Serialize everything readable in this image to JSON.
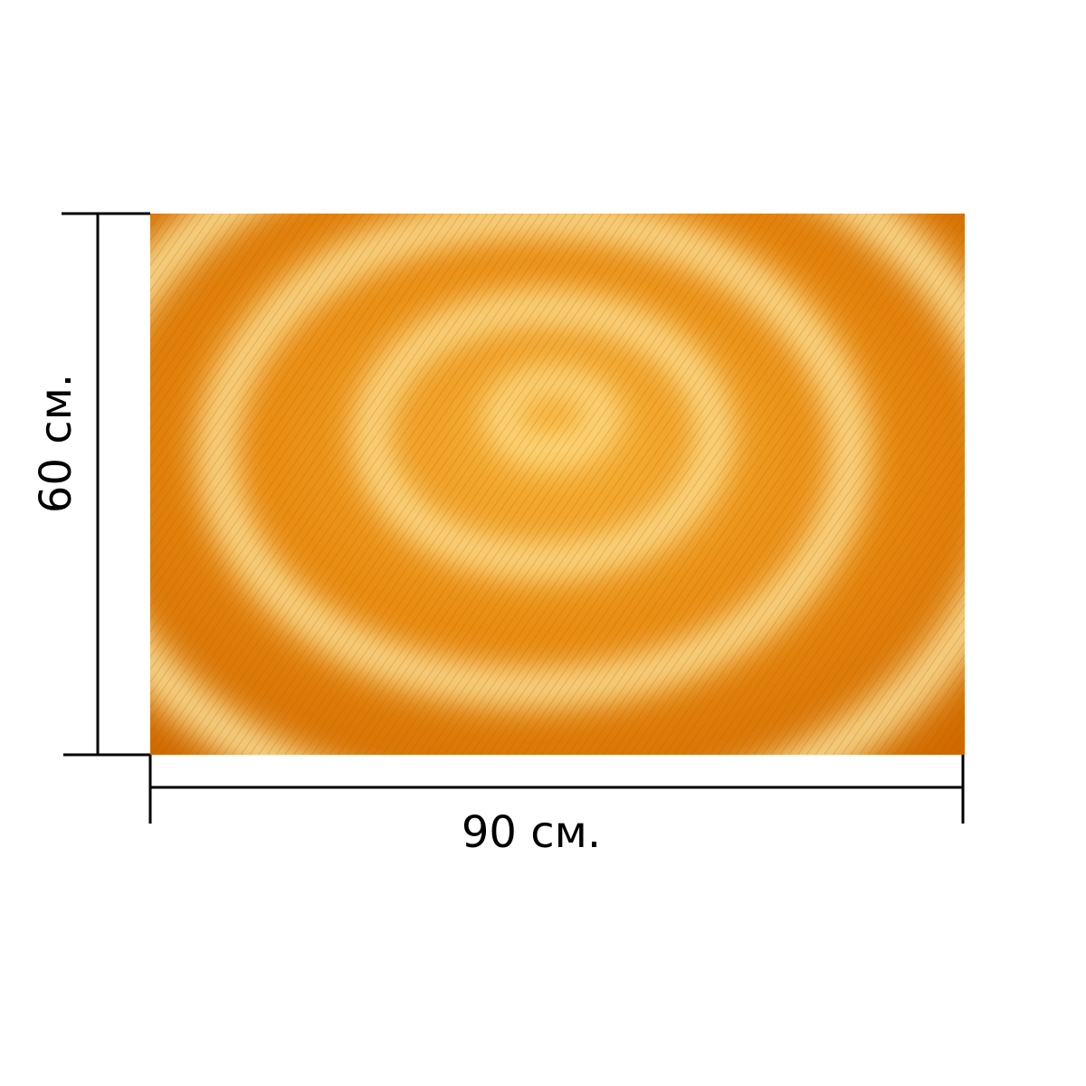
{
  "dimensions": {
    "height": "60 см.",
    "width": "90 см."
  }
}
